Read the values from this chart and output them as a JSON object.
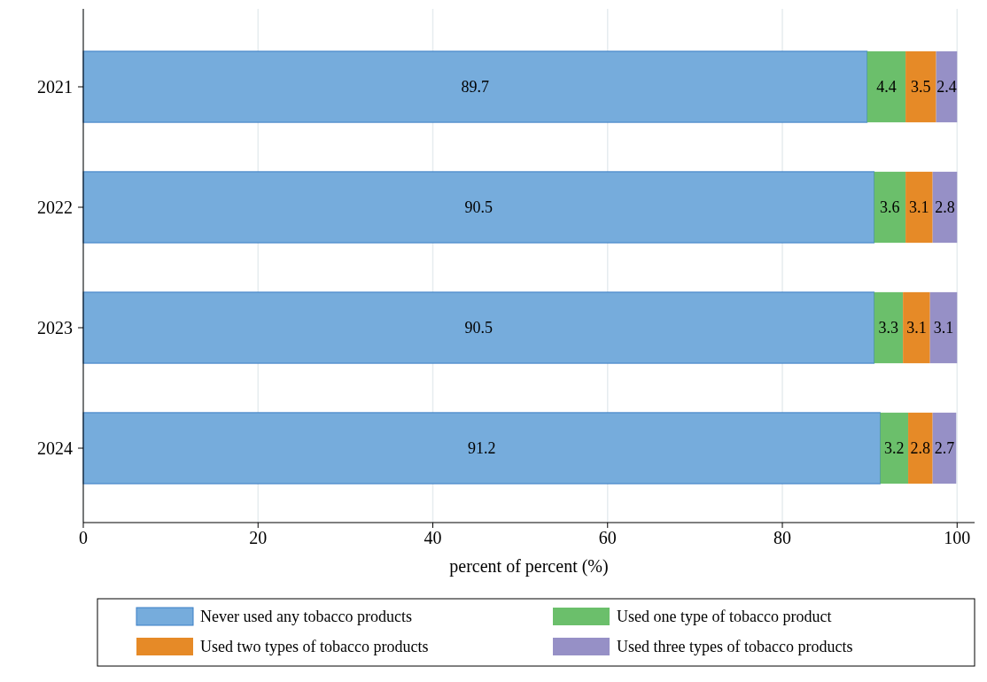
{
  "chart_data": {
    "type": "bar",
    "orientation": "horizontal",
    "stacked": true,
    "xlabel": "percent of percent (%)",
    "categories": [
      "2021",
      "2022",
      "2023",
      "2024"
    ],
    "series": [
      {
        "name": "Never used any tobacco products",
        "color": "#76acdc",
        "values": [
          89.7,
          90.5,
          90.5,
          91.2
        ]
      },
      {
        "name": "Used one type of tobacco product",
        "color": "#6bbf6b",
        "values": [
          4.4,
          3.6,
          3.3,
          3.2
        ]
      },
      {
        "name": "Used two types of tobacco products",
        "color": "#e68a27",
        "values": [
          3.5,
          3.1,
          3.1,
          2.8
        ]
      },
      {
        "name": "Used three types of tobacco products",
        "color": "#9690c6",
        "values": [
          2.4,
          2.8,
          3.1,
          2.7
        ]
      }
    ],
    "xlim": [
      0,
      102
    ],
    "xticks": [
      0,
      20,
      40,
      60,
      80,
      100
    ],
    "grid": "x",
    "legend": "bottom",
    "data_labels": true
  }
}
